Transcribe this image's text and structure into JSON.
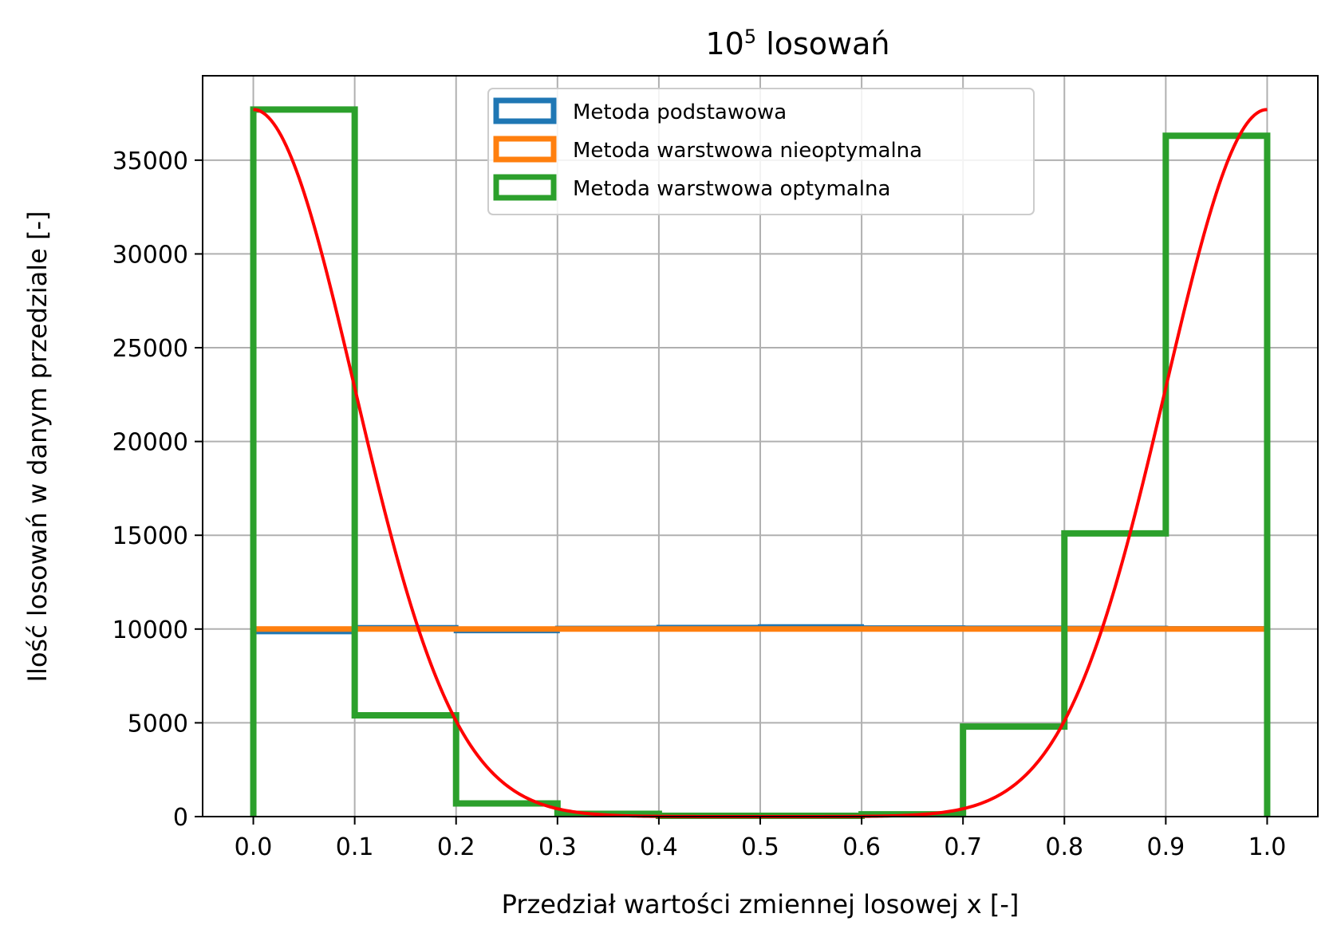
{
  "chart_data": {
    "type": "histogram",
    "title": {
      "base": "10",
      "superscript": "5",
      "rest": " losowań"
    },
    "xlabel": "Przedział wartości zmiennej losowej x [-]",
    "ylabel": "Ilość losowań w danym przedziale [-]",
    "xlim": [
      -0.05,
      1.05
    ],
    "ylim": [
      0,
      39500
    ],
    "grid": true,
    "legend_position": "upper-center",
    "x_ticks": [
      0.0,
      0.1,
      0.2,
      0.3,
      0.4,
      0.5,
      0.6,
      0.7,
      0.8,
      0.9,
      1.0
    ],
    "x_tick_labels": [
      "0.0",
      "0.1",
      "0.2",
      "0.3",
      "0.4",
      "0.5",
      "0.6",
      "0.7",
      "0.8",
      "0.9",
      "1.0"
    ],
    "y_ticks": [
      0,
      5000,
      10000,
      15000,
      20000,
      25000,
      30000,
      35000
    ],
    "y_tick_labels": [
      "0",
      "5000",
      "10000",
      "15000",
      "20000",
      "25000",
      "30000",
      "35000"
    ],
    "bin_edges": [
      0.0,
      0.1,
      0.2,
      0.3,
      0.4,
      0.5,
      0.6,
      0.7,
      0.8,
      0.9,
      1.0
    ],
    "series": [
      {
        "name": "Metoda podstawowa",
        "kind": "step",
        "color": "#1f77b4",
        "counts": [
          9850,
          10090,
          9900,
          10050,
          10100,
          10130,
          10070,
          10060,
          10050,
          10030
        ]
      },
      {
        "name": "Metoda warstwowa nieoptymalna",
        "kind": "step",
        "color": "#ff7f0e",
        "counts": [
          10000,
          10000,
          10000,
          10000,
          10000,
          10000,
          10000,
          10000,
          10000,
          10000
        ]
      },
      {
        "name": "Metoda warstwowa optymalna",
        "kind": "step",
        "color": "#2ca02c",
        "counts": [
          37700,
          5400,
          700,
          150,
          40,
          40,
          120,
          4800,
          15100,
          36300
        ]
      }
    ],
    "density_curve": {
      "color": "#ff0000",
      "peak": 37700,
      "formula": "peak * exp(-50 x^2) + peak * exp(-50 (x-1)^2), x in [0,1]"
    }
  }
}
